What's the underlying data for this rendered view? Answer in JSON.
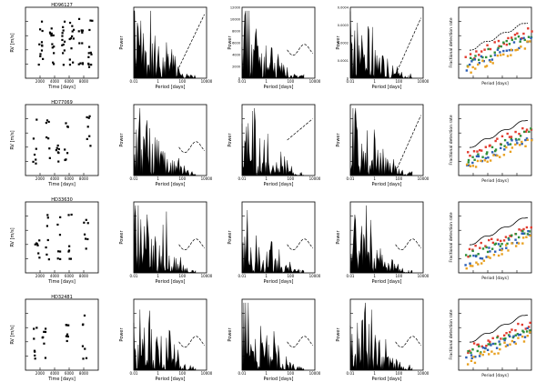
{
  "figure": {
    "rows": [
      {
        "panel_title": "HD96127"
      },
      {
        "panel_title": "HD77069"
      },
      {
        "panel_title": "HD33630"
      },
      {
        "panel_title": "HD32481"
      }
    ],
    "x_labels": {
      "time": "Time [days]",
      "period": "Period [days]"
    },
    "y_labels": {
      "rv": "RV [m/s]",
      "power": "Power",
      "fraction": "Fractional detection rate"
    }
  },
  "chart_data": [
    {
      "type": "scatter",
      "title": "HD96127",
      "xlabel": "Time [days]",
      "ylabel": "RV [m/s]",
      "x_ticks": [
        "2000",
        "4000",
        "6000",
        "8000"
      ],
      "note": "RV time series"
    },
    {
      "type": "line",
      "title": "",
      "xlabel": "Period [days]",
      "ylabel": "Power",
      "x_ticks": [
        "0.01",
        "1",
        "100",
        "10000"
      ],
      "log_x": true,
      "note": "periodogram (column 2)"
    },
    {
      "type": "line",
      "title": "",
      "xlabel": "Period [days]",
      "ylabel": "Power",
      "y_ticks": [
        "0",
        "2000",
        "4000",
        "6000",
        "8000",
        "10000",
        "12000"
      ],
      "log_x": true
    },
    {
      "type": "line",
      "title": "",
      "xlabel": "Period [days]",
      "ylabel": "Power",
      "y_ticks": [
        "0",
        "0.0001",
        "0.0002",
        "0.0003",
        "0.0004"
      ],
      "log_x": true
    },
    {
      "type": "scatter",
      "title": "",
      "xlabel": "Period [days]",
      "ylabel": "Fractional detection rate",
      "log_x": true,
      "series": [
        {
          "name": "",
          "color": "#e23b2e"
        },
        {
          "name": "",
          "color": "#2f8f3a"
        },
        {
          "name": "",
          "color": "#2c5fb5"
        },
        {
          "name": "",
          "color": "#e8a020"
        }
      ]
    },
    {
      "type": "scatter",
      "title": "HD77069",
      "xlabel": "Time [days]",
      "ylabel": "RV [m/s]"
    },
    {
      "type": "scatter",
      "title": "HD33630",
      "xlabel": "Time [days]",
      "ylabel": "RV [m/s]"
    },
    {
      "type": "scatter",
      "title": "HD32481",
      "xlabel": "Time [days]",
      "ylabel": "RV [m/s]"
    }
  ],
  "colors": {
    "axis": "#000000",
    "red": "#e23b2e",
    "green": "#2f8f3a",
    "blue": "#2c5fb5",
    "orange": "#e8a020"
  }
}
